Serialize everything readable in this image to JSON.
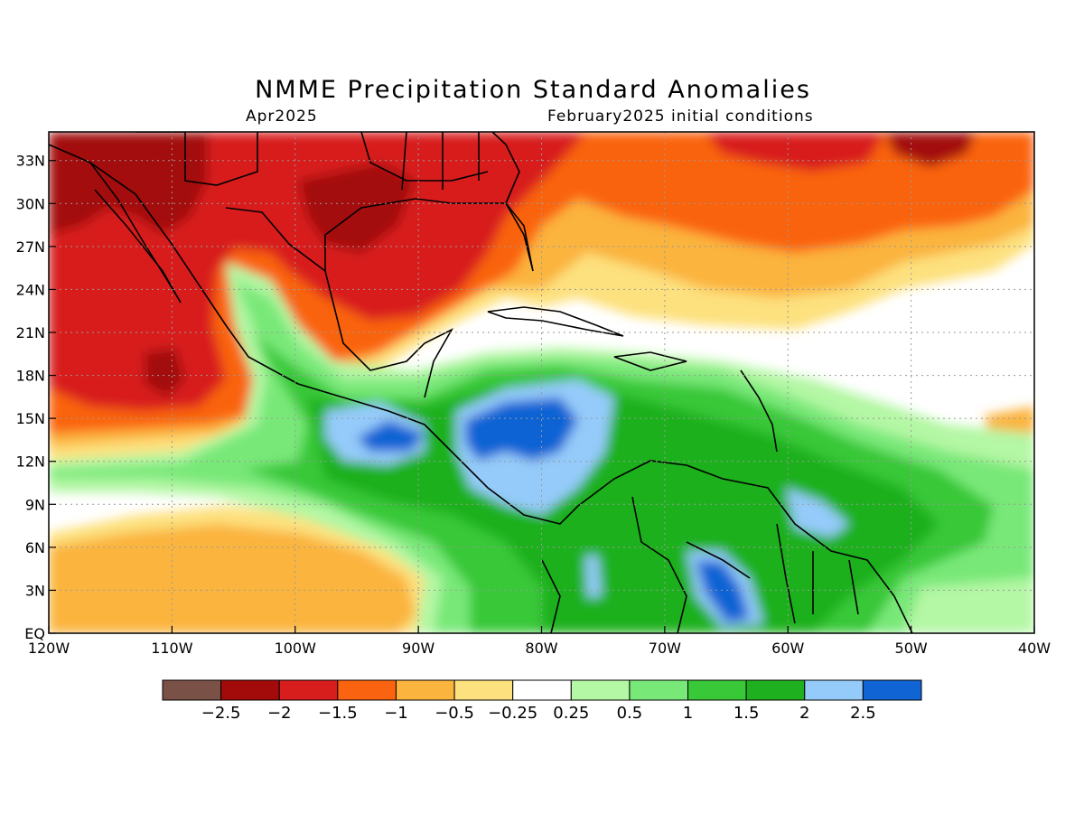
{
  "header": {
    "title": "NMME Precipitation Standard Anomalies",
    "subtitle_left": "Apr2025",
    "subtitle_right": "February2025 initial conditions"
  },
  "axes": {
    "lat_ticks": [
      "33N",
      "30N",
      "27N",
      "24N",
      "21N",
      "18N",
      "15N",
      "12N",
      "9N",
      "6N",
      "3N",
      "EQ"
    ],
    "lon_ticks": [
      "120W",
      "110W",
      "100W",
      "90W",
      "80W",
      "70W",
      "60W",
      "50W",
      "40W"
    ],
    "lat_range": [
      0,
      35
    ],
    "lon_range": [
      -120,
      -40
    ]
  },
  "colorbar": {
    "labels": [
      "−2.5",
      "−2",
      "−1.5",
      "−1",
      "−0.5",
      "−0.25",
      "0.25",
      "0.5",
      "1",
      "1.5",
      "2",
      "2.5"
    ],
    "colors": [
      "#7a5147",
      "#a30a0a",
      "#d81d1d",
      "#fa6410",
      "#fbb43e",
      "#fde17e",
      "#ffffff",
      "#b4f7a4",
      "#78e878",
      "#38c838",
      "#1eb01e",
      "#94cbfa",
      "#1064d4"
    ]
  }
}
